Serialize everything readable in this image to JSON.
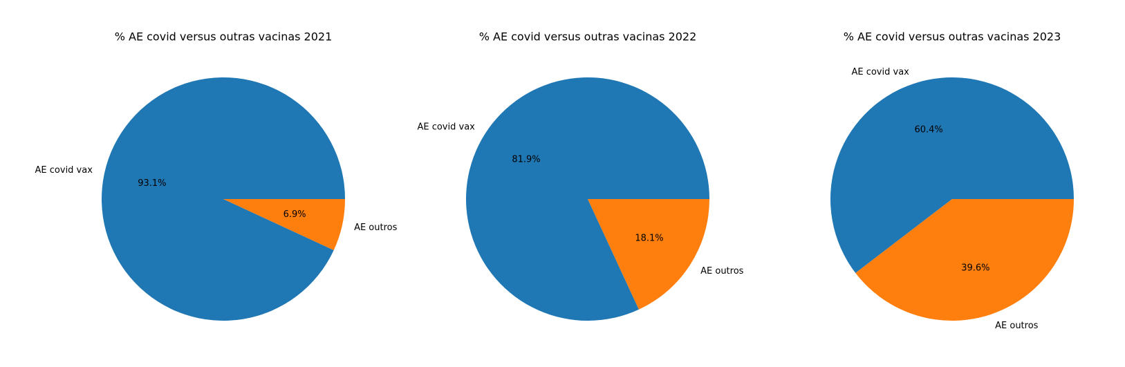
{
  "chart_data": [
    {
      "type": "pie",
      "title": "% AE covid versus outras vacinas 2021",
      "labels": [
        "AE covid vax",
        "AE outros"
      ],
      "values": [
        93.1,
        6.9
      ],
      "autopct": [
        "93.1%",
        "6.9%"
      ],
      "colors": [
        "#1f77b4",
        "#ff7f0e"
      ]
    },
    {
      "type": "pie",
      "title": "% AE covid versus outras vacinas 2022",
      "labels": [
        "AE covid vax",
        "AE outros"
      ],
      "values": [
        81.9,
        18.1
      ],
      "autopct": [
        "81.9%",
        "18.1%"
      ],
      "colors": [
        "#1f77b4",
        "#ff7f0e"
      ]
    },
    {
      "type": "pie",
      "title": "% AE covid versus outras vacinas 2023",
      "labels": [
        "AE covid vax",
        "AE outros"
      ],
      "values": [
        60.4,
        39.6
      ],
      "autopct": [
        "60.4%",
        "39.6%"
      ],
      "colors": [
        "#1f77b4",
        "#ff7f0e"
      ]
    }
  ]
}
